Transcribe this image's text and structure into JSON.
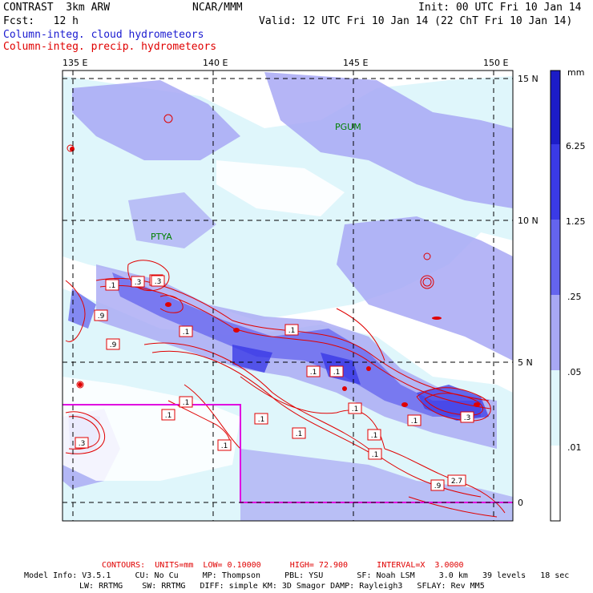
{
  "header": {
    "model": "CONTRAST  3km ARW",
    "org": "NCAR/MMM",
    "init": "Init: 00 UTC Fri 10 Jan 14",
    "fcst": "Fcst:   12 h",
    "valid": "Valid: 12 UTC Fri 10 Jan 14 (22 ChT Fri 10 Jan 14)",
    "field_cloud": "Column-integ. cloud hydrometeors",
    "field_precip": "Column-integ. precip. hydrometeors"
  },
  "colors": {
    "cloud_title": "#1a1ad0",
    "precip_title": "#e00000",
    "contour": "#e00000",
    "magenta_box": "#e000e0",
    "station_label": "#008000"
  },
  "lon_labels": [
    "135 E",
    "140 E",
    "145 E",
    "150 E"
  ],
  "lat_labels": [
    "15 N",
    "10 N",
    "5 N",
    "0"
  ],
  "stations": [
    "PGUM",
    "PTYA"
  ],
  "colorbar": {
    "unit": "mm",
    "levels": [
      "6.25",
      "1.25",
      ".25",
      ".05",
      ".01"
    ],
    "colors": [
      "#1c1cc8",
      "#3a3ae6",
      "#6464ee",
      "#a8a8f4",
      "#cce4f8",
      "#dff6fb",
      "#ffffff"
    ]
  },
  "contour_labels": [
    ".1",
    ".3",
    ".1",
    ".9",
    ".9",
    ".1",
    ".1",
    ".1",
    ".1",
    ".1",
    ".1",
    ".1",
    ".1",
    ".1",
    ".1",
    ".1",
    ".1",
    ".3",
    ".3",
    ".9",
    "2.7",
    ".1",
    ".3"
  ],
  "footer": {
    "contours": "CONTOURS:  UNITS=mm  LOW= 0.10000      HIGH= 72.900      INTERVAL=X  3.0000",
    "model_info_1": "Model Info: V3.5.1     CU: No Cu     MP: Thompson     PBL: YSU       SF: Noah LSM     3.0 km   39 levels   18 sec",
    "model_info_2": "LW: RRTMG    SW: RRTMG   DIFF: simple KM: 3D Smagor DAMP: Rayleigh3   SFLAY: Rev MM5"
  }
}
